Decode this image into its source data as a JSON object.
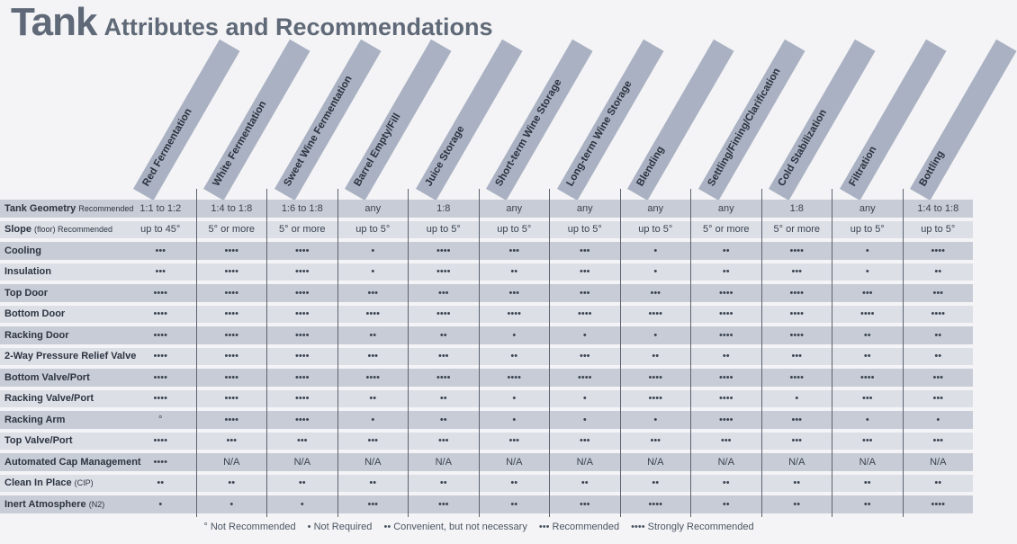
{
  "title": {
    "main": "Tank",
    "sub": "Attributes and Recommendations"
  },
  "columns": [
    "Red Fermentation",
    "White Fermentation",
    "Sweet Wine Fermentation",
    "Barrel Empty/Fill",
    "Juice Storage",
    "Short-term Wine Storage",
    "Long-term Wine Storage",
    "Blending",
    "Settling/Fining/Clarification",
    "Cold Stabilization",
    "Filtration",
    "Bottling"
  ],
  "rows": [
    {
      "label": "Tank Geometry",
      "suffix": "Recommended",
      "values": [
        "1:1 to 1:2",
        "1:4 to 1:8",
        "1:6 to 1:8",
        "any",
        "1:8",
        "any",
        "any",
        "any",
        "any",
        "1:8",
        "any",
        "1:4 to 1:8"
      ]
    },
    {
      "label": "Slope",
      "suffix": "(floor) Recommended",
      "values": [
        "up to 45°",
        "5° or more",
        "5° or more",
        "up to 5°",
        "up to 5°",
        "up to 5°",
        "up to 5°",
        "up to 5°",
        "5° or more",
        "5° or more",
        "up to 5°",
        "up to 5°"
      ]
    },
    {
      "label": "Cooling",
      "suffix": "",
      "values": [
        "•••",
        "••••",
        "••••",
        "•",
        "••••",
        "•••",
        "•••",
        "•",
        "••",
        "••••",
        "•",
        "••••"
      ]
    },
    {
      "label": "Insulation",
      "suffix": "",
      "values": [
        "•••",
        "••••",
        "••••",
        "•",
        "••••",
        "••",
        "•••",
        "•",
        "••",
        "•••",
        "•",
        "••"
      ]
    },
    {
      "label": "Top Door",
      "suffix": "",
      "values": [
        "••••",
        "••••",
        "••••",
        "•••",
        "•••",
        "•••",
        "•••",
        "•••",
        "••••",
        "••••",
        "•••",
        "•••"
      ]
    },
    {
      "label": "Bottom Door",
      "suffix": "",
      "values": [
        "••••",
        "••••",
        "••••",
        "••••",
        "••••",
        "••••",
        "••••",
        "••••",
        "••••",
        "••••",
        "••••",
        "••••"
      ]
    },
    {
      "label": "Racking Door",
      "suffix": "",
      "values": [
        "••••",
        "••••",
        "••••",
        "••",
        "••",
        "•",
        "•",
        "•",
        "••••",
        "••••",
        "••",
        "••"
      ]
    },
    {
      "label": "2-Way Pressure Relief Valve",
      "suffix": "",
      "values": [
        "••••",
        "••••",
        "••••",
        "•••",
        "•••",
        "••",
        "•••",
        "••",
        "••",
        "•••",
        "••",
        "••"
      ]
    },
    {
      "label": "Bottom Valve/Port",
      "suffix": "",
      "values": [
        "••••",
        "••••",
        "••••",
        "••••",
        "••••",
        "••••",
        "••••",
        "••••",
        "••••",
        "••••",
        "••••",
        "•••"
      ]
    },
    {
      "label": "Racking Valve/Port",
      "suffix": "",
      "values": [
        "••••",
        "••••",
        "••••",
        "••",
        "••",
        "•",
        "•",
        "••••",
        "••••",
        "•",
        "•••",
        "•••"
      ]
    },
    {
      "label": "Racking Arm",
      "suffix": "",
      "values": [
        "°",
        "••••",
        "••••",
        "•",
        "••",
        "•",
        "•",
        "•",
        "••••",
        "•••",
        "•",
        "•"
      ]
    },
    {
      "label": "Top Valve/Port",
      "suffix": "",
      "values": [
        "••••",
        "•••",
        "•••",
        "•••",
        "•••",
        "•••",
        "•••",
        "•••",
        "•••",
        "•••",
        "•••",
        "•••"
      ]
    },
    {
      "label": "Automated Cap Management",
      "suffix": "",
      "values": [
        "••••",
        "N/A",
        "N/A",
        "N/A",
        "N/A",
        "N/A",
        "N/A",
        "N/A",
        "N/A",
        "N/A",
        "N/A",
        "N/A"
      ]
    },
    {
      "label": "Clean In Place",
      "suffix": "(CIP)",
      "values": [
        "••",
        "••",
        "••",
        "••",
        "••",
        "••",
        "••",
        "••",
        "••",
        "••",
        "••",
        "••"
      ]
    },
    {
      "label": "Inert Atmosphere",
      "suffix": "(N2)",
      "values": [
        "•",
        "•",
        "•",
        "•••",
        "•••",
        "••",
        "•••",
        "••••",
        "••",
        "••",
        "••",
        "••••"
      ]
    }
  ],
  "legend": [
    "° Not Recommended",
    "• Not Required",
    "•• Convenient, but not necessary",
    "••• Recommended",
    "•••• Strongly Recommended"
  ]
}
